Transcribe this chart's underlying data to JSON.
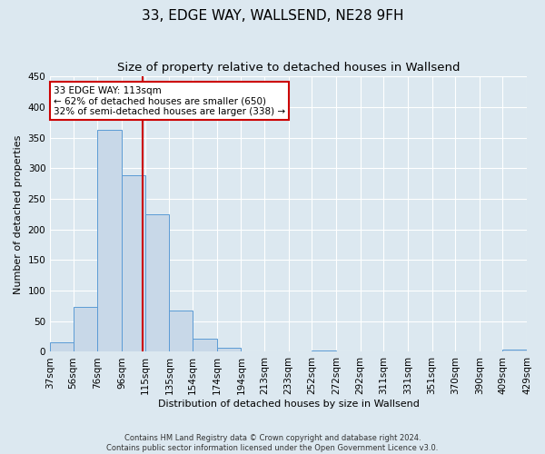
{
  "title": "33, EDGE WAY, WALLSEND, NE28 9FH",
  "subtitle": "Size of property relative to detached houses in Wallsend",
  "xlabel": "Distribution of detached houses by size in Wallsend",
  "ylabel": "Number of detached properties",
  "footnote1": "Contains HM Land Registry data © Crown copyright and database right 2024.",
  "footnote2": "Contains public sector information licensed under the Open Government Licence v3.0.",
  "bin_edges": [
    37,
    56,
    76,
    96,
    115,
    135,
    154,
    174,
    194,
    213,
    233,
    252,
    272,
    292,
    311,
    331,
    351,
    370,
    390,
    409,
    429
  ],
  "bin_labels": [
    "37sqm",
    "56sqm",
    "76sqm",
    "96sqm",
    "115sqm",
    "135sqm",
    "154sqm",
    "174sqm",
    "194sqm",
    "213sqm",
    "233sqm",
    "252sqm",
    "272sqm",
    "292sqm",
    "311sqm",
    "331sqm",
    "351sqm",
    "370sqm",
    "390sqm",
    "409sqm",
    "429sqm"
  ],
  "counts": [
    15,
    73,
    363,
    289,
    225,
    67,
    22,
    7,
    0,
    0,
    0,
    2,
    0,
    0,
    0,
    0,
    0,
    0,
    0,
    3
  ],
  "bar_facecolor": "#c8d8e8",
  "bar_edgecolor": "#5b9bd5",
  "property_size": 113,
  "vline_color": "#cc0000",
  "annotation_line1": "33 EDGE WAY: 113sqm",
  "annotation_line2": "← 62% of detached houses are smaller (650)",
  "annotation_line3": "32% of semi-detached houses are larger (338) →",
  "annotation_box_edgecolor": "#cc0000",
  "annotation_box_facecolor": "#ffffff",
  "ylim": [
    0,
    450
  ],
  "yticks": [
    0,
    50,
    100,
    150,
    200,
    250,
    300,
    350,
    400,
    450
  ],
  "background_color": "#dce8f0",
  "plot_bg_color": "#dce8f0",
  "grid_color": "#ffffff",
  "title_fontsize": 11,
  "subtitle_fontsize": 9.5,
  "axis_label_fontsize": 8,
  "tick_fontsize": 7.5,
  "annotation_fontsize": 7.5
}
